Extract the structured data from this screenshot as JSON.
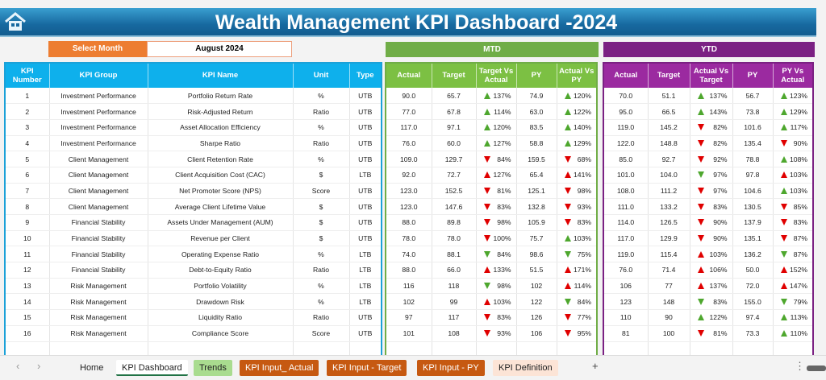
{
  "title": "Wealth Management KPI Dashboard -2024",
  "select_month_label": "Select Month",
  "selected_month": "August 2024",
  "mtd_label": "MTD",
  "ytd_label": "YTD",
  "colors": {
    "up_good": "#4ea72e",
    "down_bad": "#e00000",
    "title_bg": "#1769a0",
    "mtd": "#70ad47",
    "ytd": "#7b2183",
    "select": "#ed7d31"
  },
  "headers": {
    "left": [
      "KPI Number",
      "KPI Group",
      "KPI Name",
      "Unit",
      "Type"
    ],
    "mtd": [
      "Actual",
      "Target",
      "Target Vs Actual",
      "PY",
      "Actual Vs PY"
    ],
    "ytd": [
      "Actual",
      "Target",
      "Actual Vs Target",
      "PY",
      "PY Vs Actual"
    ]
  },
  "kpis": [
    {
      "no": "1",
      "group": "Investment Performance",
      "name": "Portfolio Return Rate",
      "unit": "%",
      "type": "UTB",
      "mtd": [
        "90.0",
        "65.7",
        "up-green",
        "137%",
        "74.9",
        "up-green",
        "120%"
      ],
      "ytd": [
        "70.0",
        "51.1",
        "up-green",
        "137%",
        "56.7",
        "up-green",
        "123%"
      ]
    },
    {
      "no": "2",
      "group": "Investment Performance",
      "name": "Risk-Adjusted Return",
      "unit": "Ratio",
      "type": "UTB",
      "mtd": [
        "77.0",
        "67.8",
        "up-green",
        "114%",
        "63.0",
        "up-green",
        "122%"
      ],
      "ytd": [
        "95.0",
        "66.5",
        "up-green",
        "143%",
        "73.8",
        "up-green",
        "129%"
      ]
    },
    {
      "no": "3",
      "group": "Investment Performance",
      "name": "Asset Allocation Efficiency",
      "unit": "%",
      "type": "UTB",
      "mtd": [
        "117.0",
        "97.1",
        "up-green",
        "120%",
        "83.5",
        "up-green",
        "140%"
      ],
      "ytd": [
        "119.0",
        "145.2",
        "down-red",
        "82%",
        "101.6",
        "up-green",
        "117%"
      ]
    },
    {
      "no": "4",
      "group": "Investment Performance",
      "name": "Sharpe Ratio",
      "unit": "Ratio",
      "type": "UTB",
      "mtd": [
        "76.0",
        "60.0",
        "up-green",
        "127%",
        "58.8",
        "up-green",
        "129%"
      ],
      "ytd": [
        "122.0",
        "148.8",
        "down-red",
        "82%",
        "135.4",
        "down-red",
        "90%"
      ]
    },
    {
      "no": "5",
      "group": "Client Management",
      "name": "Client Retention Rate",
      "unit": "%",
      "type": "UTB",
      "mtd": [
        "109.0",
        "129.7",
        "down-red",
        "84%",
        "159.5",
        "down-red",
        "68%"
      ],
      "ytd": [
        "85.0",
        "92.7",
        "down-red",
        "92%",
        "78.8",
        "up-green",
        "108%"
      ]
    },
    {
      "no": "6",
      "group": "Client Management",
      "name": "Client Acquisition Cost (CAC)",
      "unit": "$",
      "type": "LTB",
      "mtd": [
        "92.0",
        "72.7",
        "up-red",
        "127%",
        "65.4",
        "up-red",
        "141%"
      ],
      "ytd": [
        "101.0",
        "104.0",
        "down-green",
        "97%",
        "97.8",
        "up-red",
        "103%"
      ]
    },
    {
      "no": "7",
      "group": "Client Management",
      "name": "Net Promoter Score (NPS)",
      "unit": "Score",
      "type": "UTB",
      "mtd": [
        "123.0",
        "152.5",
        "down-red",
        "81%",
        "125.1",
        "down-red",
        "98%"
      ],
      "ytd": [
        "108.0",
        "111.2",
        "down-red",
        "97%",
        "104.6",
        "up-green",
        "103%"
      ]
    },
    {
      "no": "8",
      "group": "Client Management",
      "name": "Average Client Lifetime Value",
      "unit": "$",
      "type": "UTB",
      "mtd": [
        "123.0",
        "147.6",
        "down-red",
        "83%",
        "132.8",
        "down-red",
        "93%"
      ],
      "ytd": [
        "111.0",
        "133.2",
        "down-red",
        "83%",
        "130.5",
        "down-red",
        "85%"
      ]
    },
    {
      "no": "9",
      "group": "Financial Stability",
      "name": "Assets Under Management (AUM)",
      "unit": "$",
      "type": "UTB",
      "mtd": [
        "88.0",
        "89.8",
        "down-red",
        "98%",
        "105.9",
        "down-red",
        "83%"
      ],
      "ytd": [
        "114.0",
        "126.5",
        "down-red",
        "90%",
        "137.9",
        "down-red",
        "83%"
      ]
    },
    {
      "no": "10",
      "group": "Financial Stability",
      "name": "Revenue per Client",
      "unit": "$",
      "type": "UTB",
      "mtd": [
        "78.0",
        "78.0",
        "down-red",
        "100%",
        "75.7",
        "up-green",
        "103%"
      ],
      "ytd": [
        "117.0",
        "129.9",
        "down-red",
        "90%",
        "135.1",
        "down-red",
        "87%"
      ]
    },
    {
      "no": "11",
      "group": "Financial Stability",
      "name": "Operating Expense Ratio",
      "unit": "%",
      "type": "LTB",
      "mtd": [
        "74.0",
        "88.1",
        "down-green",
        "84%",
        "98.6",
        "down-green",
        "75%"
      ],
      "ytd": [
        "119.0",
        "115.4",
        "up-red",
        "103%",
        "136.2",
        "down-green",
        "87%"
      ]
    },
    {
      "no": "12",
      "group": "Financial Stability",
      "name": "Debt-to-Equity Ratio",
      "unit": "Ratio",
      "type": "LTB",
      "mtd": [
        "88.0",
        "66.0",
        "up-red",
        "133%",
        "51.5",
        "up-red",
        "171%"
      ],
      "ytd": [
        "76.0",
        "71.4",
        "up-red",
        "106%",
        "50.0",
        "up-red",
        "152%"
      ]
    },
    {
      "no": "13",
      "group": "Risk Management",
      "name": "Portfolio Volatility",
      "unit": "%",
      "type": "LTB",
      "mtd": [
        "116",
        "118",
        "down-green",
        "98%",
        "102",
        "up-red",
        "114%"
      ],
      "ytd": [
        "106",
        "77",
        "up-red",
        "137%",
        "72.0",
        "up-red",
        "147%"
      ]
    },
    {
      "no": "14",
      "group": "Risk Management",
      "name": "Drawdown Risk",
      "unit": "%",
      "type": "LTB",
      "mtd": [
        "102",
        "99",
        "up-red",
        "103%",
        "122",
        "down-green",
        "84%"
      ],
      "ytd": [
        "123",
        "148",
        "down-green",
        "83%",
        "155.0",
        "down-green",
        "79%"
      ]
    },
    {
      "no": "15",
      "group": "Risk Management",
      "name": "Liquidity Ratio",
      "unit": "Ratio",
      "type": "UTB",
      "mtd": [
        "97",
        "117",
        "down-red",
        "83%",
        "126",
        "down-red",
        "77%"
      ],
      "ytd": [
        "110",
        "90",
        "up-green",
        "122%",
        "97.4",
        "up-green",
        "113%"
      ]
    },
    {
      "no": "16",
      "group": "Risk Management",
      "name": "Compliance Score",
      "unit": "Score",
      "type": "UTB",
      "mtd": [
        "101",
        "108",
        "down-red",
        "93%",
        "106",
        "down-red",
        "95%"
      ],
      "ytd": [
        "81",
        "100",
        "down-red",
        "81%",
        "73.3",
        "up-green",
        "110%"
      ]
    }
  ],
  "sheet_tabs": [
    {
      "label": "Home",
      "bg": "transparent",
      "fg": "#222"
    },
    {
      "label": "KPI Dashboard",
      "bg": "#ffffff",
      "fg": "#222",
      "active": true
    },
    {
      "label": "Trends",
      "bg": "#a9dc8f",
      "fg": "#222"
    },
    {
      "label": "KPI Input_ Actual",
      "bg": "#c65911",
      "fg": "#fff"
    },
    {
      "label": "KPI Input - Target",
      "bg": "#c65911",
      "fg": "#fff"
    },
    {
      "label": "KPI Input - PY",
      "bg": "#c65911",
      "fg": "#fff"
    },
    {
      "label": "KPI Definition",
      "bg": "#fce4d6",
      "fg": "#222"
    }
  ],
  "add_sheet": "+"
}
